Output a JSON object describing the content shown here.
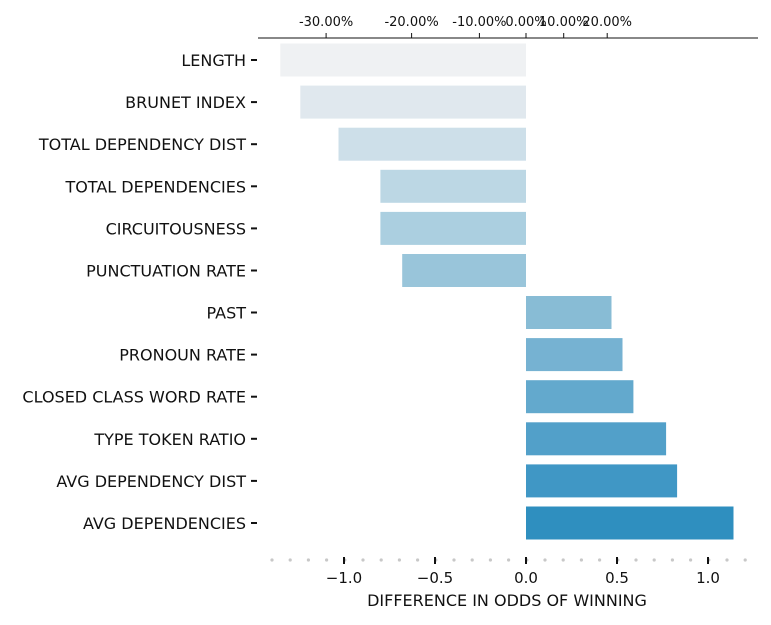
{
  "chart_data": {
    "type": "bar",
    "orientation": "horizontal",
    "categories": [
      "LENGTH",
      "BRUNET INDEX",
      "TOTAL DEPENDENCY DIST",
      "TOTAL DEPENDENCIES",
      "CIRCUITOUSNESS",
      "PUNCTUATION RATE",
      "PAST",
      "PRONOUN RATE",
      "CLOSED CLASS WORD RATE",
      "TYPE TOKEN RATIO",
      "AVG DEPENDENCY DIST",
      "AVG DEPENDENCIES"
    ],
    "values": [
      -1.35,
      -1.24,
      -1.03,
      -0.8,
      -0.8,
      -0.68,
      0.47,
      0.53,
      0.59,
      0.77,
      0.83,
      1.14
    ],
    "colors": [
      "#eff1f3",
      "#e0e8ee",
      "#cddfe9",
      "#bcd7e4",
      "#abcfe0",
      "#99c5da",
      "#88bcd5",
      "#76b2d2",
      "#63a9cd",
      "#52a0c9",
      "#4097c5",
      "#2f8fbf"
    ],
    "xlabel": "DIFFERENCE IN ODDS OF WINNING",
    "xlim": [
      -1.4,
      1.25
    ],
    "xticks": [
      "−1.0",
      "−0.5",
      "0.0",
      "0.5",
      "1.0"
    ],
    "xtick_values": [
      -1.0,
      -0.5,
      0.0,
      0.5,
      1.0
    ],
    "top_axis": {
      "ticks": [
        "-30.00%",
        "-20.00%",
        "-10.00%",
        "0.00%",
        "10.00%",
        "20.00%"
      ],
      "tick_values": [
        -1.0986,
        -0.6286,
        -0.2559,
        0.0,
        0.207,
        0.446
      ]
    },
    "grid": false,
    "legend": "none"
  }
}
